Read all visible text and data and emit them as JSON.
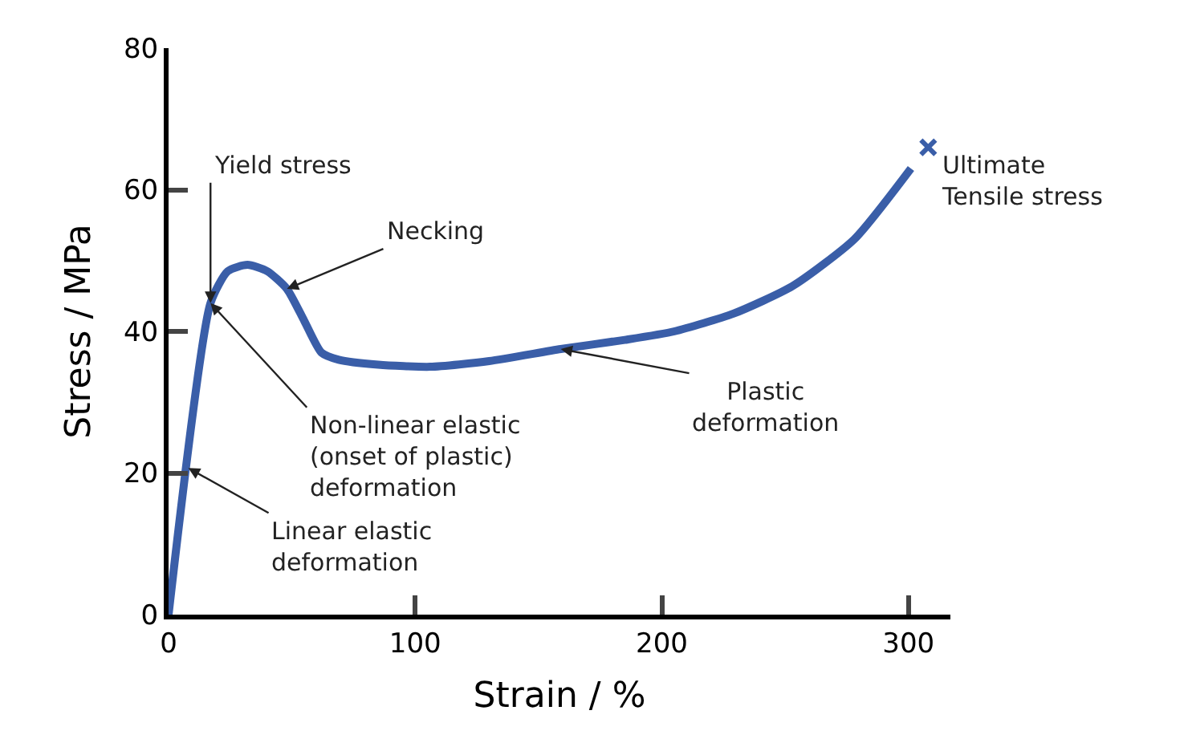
{
  "chart_data": {
    "type": "line",
    "xlabel": "Strain / %",
    "ylabel": "Stress / MPa",
    "xlim": [
      0,
      317
    ],
    "xticks": [
      0,
      100,
      200,
      300
    ],
    "ylim": [
      0,
      80
    ],
    "yticks": [
      0,
      20,
      40,
      60,
      80
    ],
    "series": [
      {
        "color": "#3a5ea8",
        "x": [
          0,
          17,
          24,
          32,
          40,
          48,
          55,
          62,
          69,
          85,
          106,
          130,
          159,
          185,
          205,
          229,
          253,
          278,
          301
        ],
        "values": [
          0,
          44,
          48.5,
          49.4,
          48.5,
          46,
          41.5,
          37,
          36,
          35.3,
          35,
          35.8,
          37.5,
          38.8,
          40,
          42.5,
          46.4,
          53,
          63
        ]
      },
      {
        "type": "scatter",
        "marker": "cross",
        "color": "#3a5ea8",
        "x": [
          308
        ],
        "values": [
          66
        ]
      }
    ],
    "annotations": [
      {
        "text": "Yield stress",
        "x": 17,
        "y": 44
      },
      {
        "text": "Necking",
        "x": 48,
        "y": 46
      },
      {
        "text": "Non-linear elastic\n(onset of plastic)\ndeformation",
        "x": 17,
        "y": 44
      },
      {
        "text": "Linear elastic\ndeformation",
        "x": 8,
        "y": 20.7
      },
      {
        "text": "Plastic\ndeformation",
        "x": 159,
        "y": 37.5
      },
      {
        "text": "Ultimate\nTensile stress",
        "x": 308,
        "y": 66
      }
    ]
  }
}
